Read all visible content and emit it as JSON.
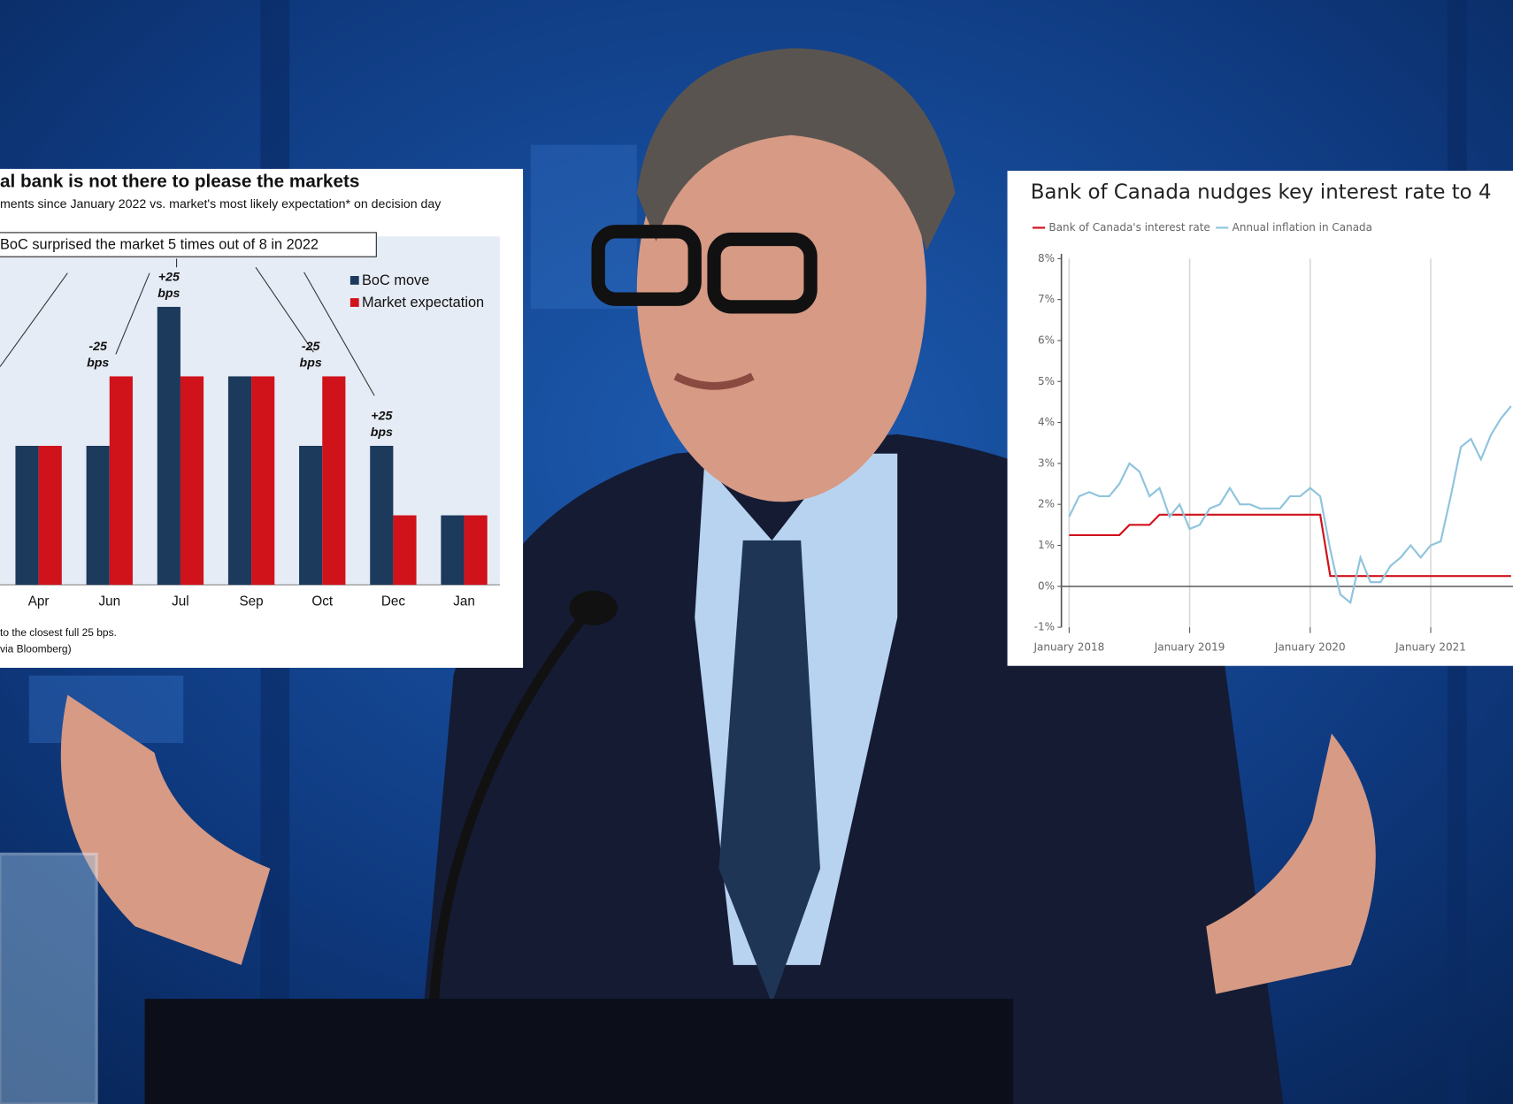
{
  "chart_data": [
    {
      "type": "bar",
      "title": "al bank is not there to please the markets",
      "subtitle": "ments since January 2022 vs. market's most likely expectation* on decision day",
      "callout": "BoC surprised the market 5 times out of 8 in 2022",
      "categories": [
        "Apr",
        "Jun",
        "Jul",
        "Sep",
        "Oct",
        "Dec",
        "Jan"
      ],
      "series": [
        {
          "name": "BoC move",
          "color": "#1b3a5c",
          "values": [
            50,
            50,
            100,
            75,
            50,
            50,
            25
          ]
        },
        {
          "name": "Market expectation",
          "color": "#d0121b",
          "values": [
            50,
            75,
            75,
            75,
            75,
            25,
            25
          ]
        }
      ],
      "annotations": [
        null,
        "-25 bps",
        "+25 bps",
        null,
        "-25 bps",
        "+25 bps",
        null
      ],
      "notes": [
        "to the closest full 25 bps.",
        "via Bloomberg)"
      ]
    },
    {
      "type": "line",
      "title": "Bank of Canada nudges key interest rate to 4",
      "series": [
        {
          "name": "Bank of Canada's interest rate",
          "color": "#d0121b",
          "values": [
            1.25,
            1.25,
            1.25,
            1.25,
            1.25,
            1.25,
            1.5,
            1.5,
            1.5,
            1.75,
            1.75,
            1.75,
            1.75,
            1.75,
            1.75,
            1.75,
            1.75,
            1.75,
            1.75,
            1.75,
            1.75,
            1.75,
            1.75,
            1.75,
            1.75,
            1.75,
            0.25,
            0.25,
            0.25,
            0.25,
            0.25,
            0.25,
            0.25,
            0.25,
            0.25,
            0.25,
            0.25,
            0.25,
            0.25,
            0.25,
            0.25,
            0.25,
            0.25,
            0.25,
            0.25
          ]
        },
        {
          "name": "Annual inflation in Canada",
          "color": "#8fc4de",
          "values": [
            1.7,
            2.2,
            2.3,
            2.2,
            2.2,
            2.5,
            3.0,
            2.8,
            2.2,
            2.4,
            1.7,
            2.0,
            1.4,
            1.5,
            1.9,
            2.0,
            2.4,
            2.0,
            2.0,
            1.9,
            1.9,
            1.9,
            2.2,
            2.2,
            2.4,
            2.2,
            0.9,
            -0.2,
            -0.4,
            0.7,
            0.1,
            0.1,
            0.5,
            0.7,
            1.0,
            0.7,
            1.0,
            1.1,
            2.2,
            3.4,
            3.6,
            3.1,
            3.7,
            4.1,
            4.4
          ]
        }
      ],
      "x": [
        "2018-01",
        "2018-02",
        "2018-03",
        "2018-04",
        "2018-05",
        "2018-06",
        "2018-07",
        "2018-08",
        "2018-09",
        "2018-10",
        "2018-11",
        "2018-12",
        "2019-01",
        "2019-02",
        "2019-03",
        "2019-04",
        "2019-05",
        "2019-06",
        "2019-07",
        "2019-08",
        "2019-09",
        "2019-10",
        "2019-11",
        "2019-12",
        "2020-01",
        "2020-02",
        "2020-03",
        "2020-04",
        "2020-05",
        "2020-06",
        "2020-07",
        "2020-08",
        "2020-09",
        "2020-10",
        "2020-11",
        "2020-12",
        "2021-01",
        "2021-02",
        "2021-03",
        "2021-04",
        "2021-05",
        "2021-06",
        "2021-07",
        "2021-08",
        "2021-09"
      ],
      "xlim": [
        "2017-12",
        "2021-09"
      ],
      "xticks": [
        {
          "value": "2018-01",
          "label": "January 2018"
        },
        {
          "value": "2019-01",
          "label": "January 2019"
        },
        {
          "value": "2020-01",
          "label": "January 2020"
        },
        {
          "value": "2021-01",
          "label": "January 2021"
        }
      ],
      "ylim": [
        -1,
        8
      ],
      "yticks": [
        {
          "value": -1,
          "label": "-1%"
        },
        {
          "value": 0,
          "label": "0%"
        },
        {
          "value": 1,
          "label": "1%"
        },
        {
          "value": 2,
          "label": "2%"
        },
        {
          "value": 3,
          "label": "3%"
        },
        {
          "value": 4,
          "label": "4%"
        },
        {
          "value": 5,
          "label": "5%"
        },
        {
          "value": 6,
          "label": "6%"
        },
        {
          "value": 7,
          "label": "7%"
        },
        {
          "value": 8,
          "label": "8%"
        }
      ],
      "grid": true
    }
  ]
}
